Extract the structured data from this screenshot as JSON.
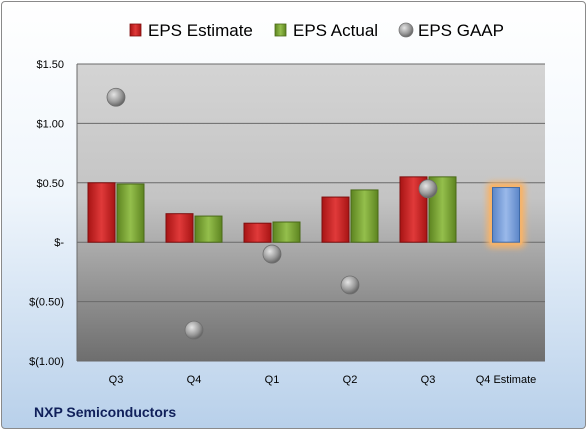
{
  "company": "NXP Semiconductors",
  "chart_data": {
    "type": "bar",
    "categories": [
      "Q3",
      "Q4",
      "Q1",
      "Q2",
      "Q3",
      "Q4 Estimate"
    ],
    "series": [
      {
        "name": "EPS Estimate",
        "values": [
          0.5,
          0.24,
          0.16,
          0.38,
          0.55,
          null
        ],
        "color": "#d42a2a"
      },
      {
        "name": "EPS Actual",
        "values": [
          0.49,
          0.22,
          0.17,
          0.44,
          0.55,
          null
        ],
        "color": "#7fa836"
      },
      {
        "name": "EPS GAAP",
        "values": [
          1.22,
          -0.74,
          -0.1,
          -0.36,
          0.45,
          null
        ],
        "color": "#9a9a9a"
      }
    ],
    "estimate_bar": {
      "category": "Q4 Estimate",
      "value": 0.46,
      "color": "#7aa2dc",
      "highlight": "#f6b36a"
    },
    "y_ticks": [
      "$1.50",
      "$1.00",
      "$0.50",
      "$-",
      "$(0.50)",
      "$(1.00)"
    ],
    "y_tick_values": [
      1.5,
      1.0,
      0.5,
      0,
      -0.5,
      -1.0
    ],
    "ylim": [
      -1.0,
      1.5
    ],
    "legend_position": "top",
    "grid": true
  }
}
